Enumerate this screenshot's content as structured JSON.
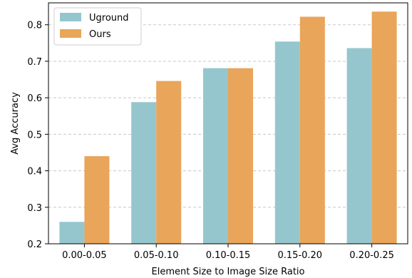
{
  "chart_data": {
    "type": "bar",
    "categories": [
      "0.00-0.05",
      "0.05-0.10",
      "0.10-0.15",
      "0.15-0.20",
      "0.20-0.25"
    ],
    "series": [
      {
        "name": "Uground",
        "values": [
          0.26,
          0.588,
          0.681,
          0.754,
          0.736
        ],
        "color": "#95c6ce"
      },
      {
        "name": "Ours",
        "values": [
          0.44,
          0.646,
          0.681,
          0.822,
          0.836
        ],
        "color": "#e9a55a"
      }
    ],
    "xlabel": "Element Size to Image Size Ratio",
    "ylabel": "Avg Accuracy",
    "ylim": [
      0.2,
      0.86
    ],
    "yticks": [
      "0.2",
      "0.3",
      "0.4",
      "0.5",
      "0.6",
      "0.7",
      "0.8"
    ],
    "grid": true,
    "grid_axis": "y",
    "legend_position": "top-left"
  }
}
